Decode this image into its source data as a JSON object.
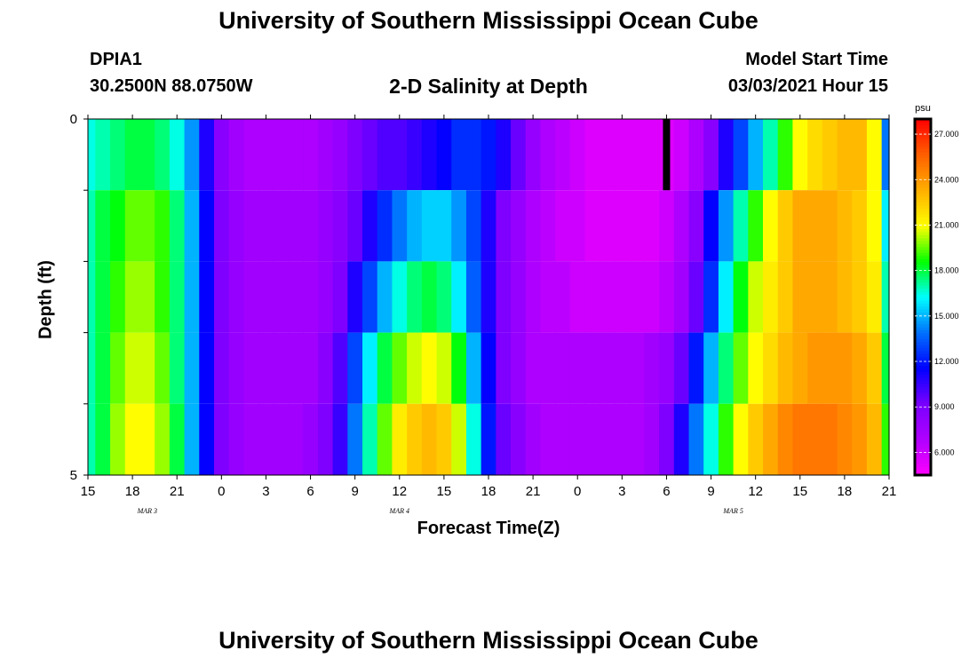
{
  "header": {
    "title": "University of Southern Mississippi Ocean Cube",
    "station_id": "DPIA1",
    "station_coords": "30.2500N 88.0750W",
    "model_start_label": "Model Start Time",
    "model_start_value": "03/03/2021 Hour 15"
  },
  "footer": {
    "title": "University of Southern Mississippi Ocean Cube"
  },
  "chart_data": {
    "type": "heatmap",
    "title": "2-D Salinity at Depth",
    "xlabel": "Forecast Time(Z)",
    "ylabel": "Depth (ft)",
    "x_tick_labels": [
      "15",
      "18",
      "21",
      "0",
      "3",
      "6",
      "9",
      "12",
      "15",
      "18",
      "21",
      "0",
      "3",
      "6",
      "9",
      "12",
      "15",
      "18",
      "21"
    ],
    "date_labels": [
      {
        "label": "MAR 3",
        "hour": 19
      },
      {
        "label": "MAR 4",
        "hour": 36
      },
      {
        "label": "MAR 5",
        "hour": 58.5
      }
    ],
    "x_range_hours": [
      15,
      69
    ],
    "y_tick_labels": [
      "0",
      "5"
    ],
    "y_range_ft": [
      0,
      5
    ],
    "depth_levels_ft": [
      0,
      1,
      2,
      3,
      4
    ],
    "colorbar": {
      "unit": "psu",
      "min": 4.5,
      "max": 28,
      "tick_values": [
        6,
        9,
        12,
        15,
        18,
        21,
        24,
        27
      ],
      "tick_labels": [
        "6.000",
        "9.000",
        "12.000",
        "15.000",
        "18.000",
        "21.000",
        "24.000",
        "27.000"
      ]
    },
    "palette": [
      "#ff00ff",
      "#b000ff",
      "#7a00ff",
      "#0000ff",
      "#0070ff",
      "#00ffff",
      "#00ff00",
      "#ffff00",
      "#ffb000",
      "#ff6000",
      "#ff0000"
    ],
    "grid": false,
    "missing_marker": {
      "hour": 54,
      "depth_level": 0,
      "color": "#000000"
    },
    "time_hours": [
      15,
      16,
      17,
      18,
      19,
      20,
      21,
      22,
      23,
      24,
      25,
      26,
      27,
      28,
      29,
      30,
      31,
      32,
      33,
      34,
      35,
      36,
      37,
      38,
      39,
      40,
      41,
      42,
      43,
      44,
      45,
      46,
      47,
      48,
      49,
      50,
      51,
      52,
      53,
      54,
      55,
      56,
      57,
      58,
      59,
      60,
      61,
      62,
      63,
      64,
      65,
      66,
      67,
      68,
      69
    ],
    "salinity": [
      [
        16.5,
        17,
        17.5,
        18,
        18,
        17.5,
        16.5,
        14.5,
        11,
        8.5,
        7.5,
        7,
        7,
        7,
        7,
        7,
        7.5,
        8,
        9,
        9.5,
        10,
        10,
        10.5,
        11,
        11.5,
        12.5,
        12.5,
        12,
        11,
        9.5,
        8,
        7,
        6.5,
        6,
        5.5,
        5.5,
        5.5,
        5.5,
        5.5,
        5.5,
        6,
        7,
        8.5,
        11,
        13,
        15,
        17,
        19,
        21,
        22,
        22.5,
        23,
        23,
        21,
        14
      ],
      [
        17,
        18,
        18.5,
        19.5,
        19.5,
        19,
        17.5,
        15,
        11.5,
        9,
        8,
        7.5,
        7.5,
        7.5,
        7.5,
        7.5,
        8,
        8.5,
        9.5,
        11,
        12.5,
        14,
        15,
        15.5,
        15.5,
        14.5,
        13,
        11,
        9,
        8,
        7,
        6.5,
        6,
        6,
        5.5,
        5.5,
        5.5,
        5.5,
        5.5,
        6,
        7,
        8.5,
        11.5,
        14.5,
        17,
        19,
        21,
        22.5,
        23.5,
        23.5,
        23.5,
        23,
        22.5,
        21,
        16
      ],
      [
        17,
        18,
        19,
        20,
        20,
        19,
        17.5,
        15,
        11.5,
        9,
        8,
        7.5,
        7.5,
        7.5,
        7.5,
        7.5,
        8,
        9,
        11,
        13,
        15,
        16.5,
        17.5,
        18,
        17.5,
        16,
        13.5,
        11,
        9,
        8,
        7,
        6.5,
        6.5,
        6,
        6,
        6,
        6,
        6,
        6,
        6.5,
        7.5,
        9.5,
        12.5,
        16,
        18.5,
        20.5,
        21.5,
        22.5,
        23.5,
        23.5,
        23.5,
        23,
        22.5,
        21.5,
        17
      ],
      [
        17,
        18,
        19.5,
        20.5,
        20.5,
        19.5,
        17.5,
        15,
        11.5,
        9,
        8,
        7.5,
        7.5,
        7.5,
        7.5,
        7.5,
        8.5,
        10,
        13,
        16,
        18,
        19.5,
        20.5,
        21,
        20.5,
        18.5,
        15,
        11.5,
        9,
        8,
        7,
        7,
        7,
        7,
        7,
        7,
        7,
        7,
        7.5,
        8,
        9.5,
        12,
        15,
        17.5,
        19.5,
        21,
        22,
        23,
        23.5,
        24,
        24,
        24,
        23.5,
        22.5,
        18
      ],
      [
        17,
        18,
        20,
        21,
        21,
        20,
        18,
        15,
        11.5,
        9,
        8,
        7.5,
        7.5,
        7.5,
        7.5,
        8,
        9,
        10.5,
        14,
        17,
        19.5,
        21.5,
        22.5,
        23,
        22.5,
        20.5,
        16.5,
        12,
        9.5,
        8.5,
        7.5,
        7,
        7,
        7,
        7,
        7,
        7,
        7,
        7.5,
        9,
        11,
        14,
        16.5,
        19,
        21,
        22.5,
        23.5,
        24.5,
        25,
        25,
        25,
        24.5,
        24,
        23,
        19
      ]
    ]
  }
}
